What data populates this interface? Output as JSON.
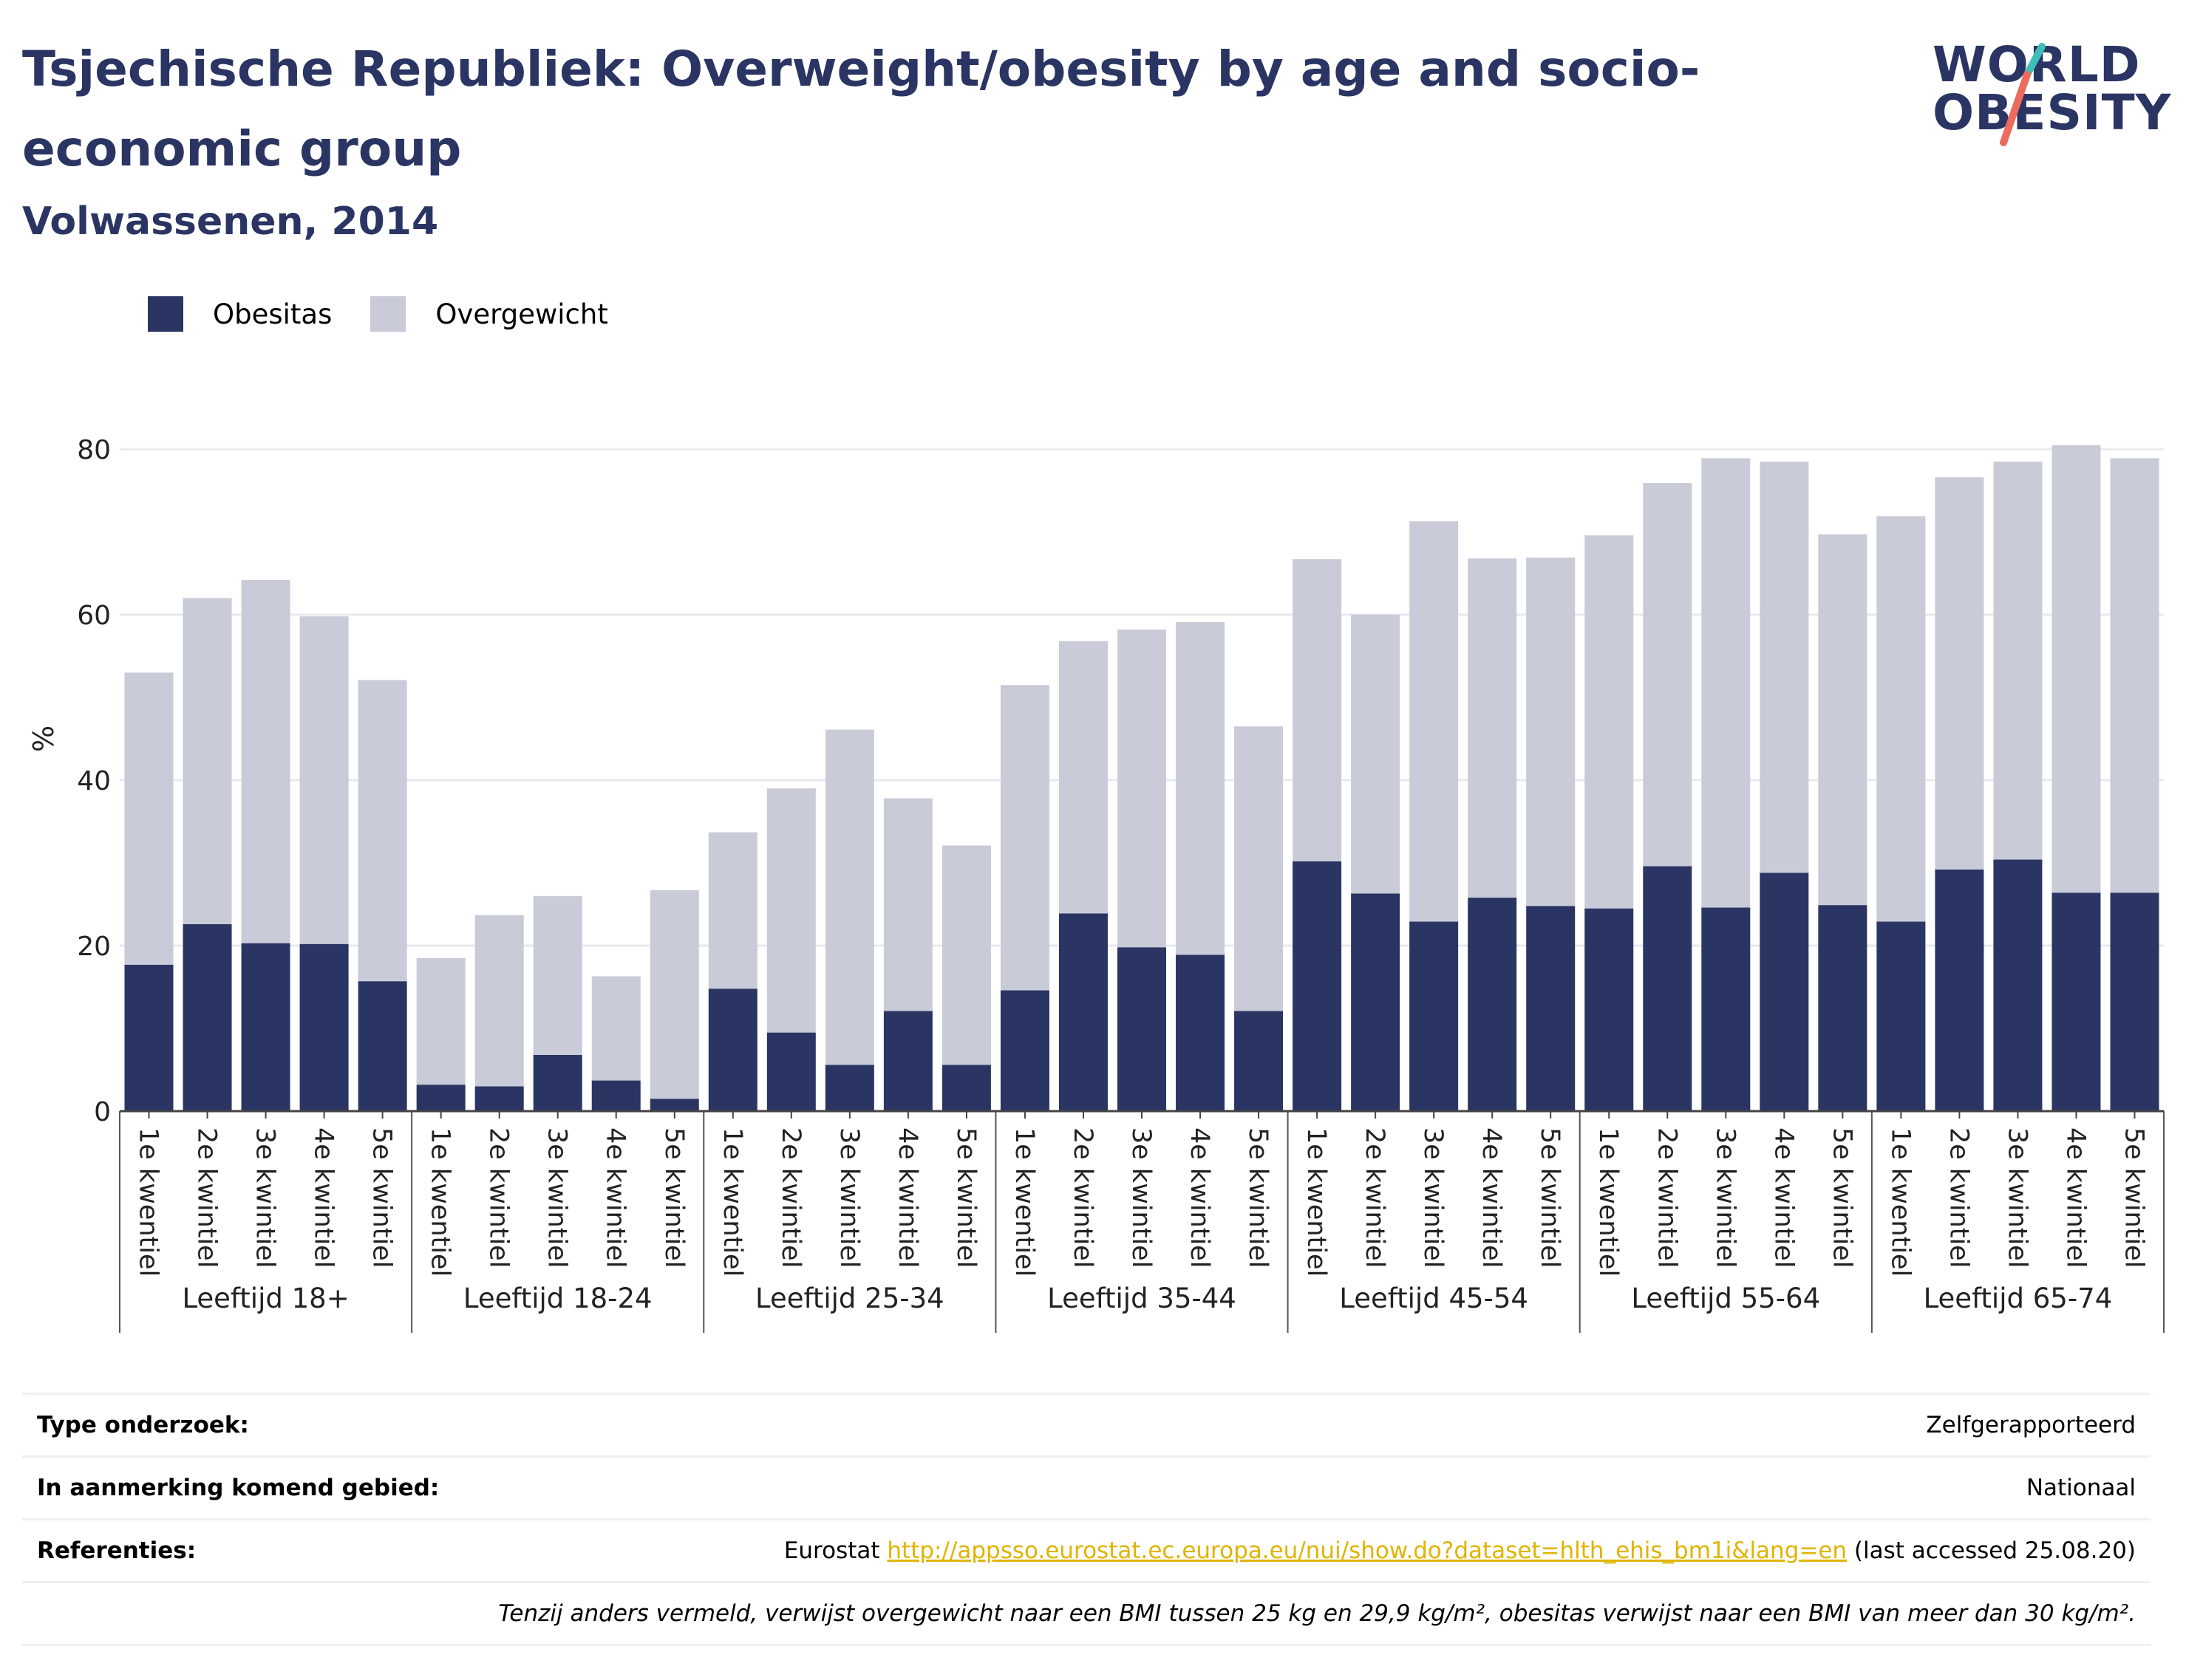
{
  "header": {
    "title": "Tsjechische Republiek: Overweight/obesity by age and socio-economic group",
    "subtitle": "Volwassenen, 2014"
  },
  "logo": {
    "line1": "WORLD",
    "line2": "OBESITY",
    "colors": {
      "navy": "#2a3563",
      "teal": "#3fbfb8",
      "coral": "#ec6b5c"
    }
  },
  "legend": {
    "items": [
      {
        "label": "Obesitas",
        "color": "#2a3563"
      },
      {
        "label": "Overgewicht",
        "color": "#c9cbd8"
      }
    ]
  },
  "chart_data": {
    "type": "bar",
    "stacked": true,
    "ylabel": "%",
    "ylim": [
      0,
      90
    ],
    "yticks": [
      0,
      20,
      40,
      60,
      80
    ],
    "grid": true,
    "legend_position": "top-left",
    "groups": [
      "Leeftijd 18+",
      "Leeftijd 18-24",
      "Leeftijd 25-34",
      "Leeftijd 35-44",
      "Leeftijd 45-54",
      "Leeftijd 55-64",
      "Leeftijd 65-74"
    ],
    "categories": [
      "1e kwentiel",
      "2e kwintiel",
      "3e kwintiel",
      "4e kwintiel",
      "5e kwintiel"
    ],
    "series": [
      {
        "name": "Obesitas",
        "color": "#2a3563",
        "values": [
          [
            17.7,
            22.6,
            20.3,
            20.2,
            15.7
          ],
          [
            3.2,
            3.0,
            6.8,
            3.7,
            1.5
          ],
          [
            14.8,
            9.5,
            5.6,
            12.1,
            5.6
          ],
          [
            14.6,
            23.9,
            19.8,
            18.9,
            12.1
          ],
          [
            30.2,
            26.3,
            22.9,
            25.8,
            24.8
          ],
          [
            24.5,
            29.6,
            24.6,
            28.8,
            24.9
          ],
          [
            22.9,
            29.2,
            30.4,
            26.4,
            26.4
          ]
        ]
      },
      {
        "name": "Overgewicht",
        "color": "#c9cbd8",
        "values": [
          [
            35.3,
            39.4,
            43.9,
            39.6,
            36.4
          ],
          [
            15.3,
            20.7,
            19.2,
            12.6,
            25.2
          ],
          [
            18.9,
            29.5,
            40.5,
            25.7,
            26.5
          ],
          [
            36.9,
            32.9,
            38.4,
            40.2,
            34.4
          ],
          [
            36.5,
            33.7,
            48.4,
            41.0,
            42.1
          ],
          [
            45.1,
            46.3,
            54.3,
            49.7,
            44.8
          ],
          [
            49.0,
            47.4,
            48.1,
            54.1,
            52.5
          ]
        ]
      }
    ]
  },
  "info": {
    "survey_type_label": "Type onderzoek:",
    "survey_type_value": "Zelfgerapporteerd",
    "area_label": "In aanmerking komend gebied:",
    "area_value": "Nationaal",
    "references_label": "Referenties:",
    "references_prefix": "Eurostat ",
    "references_link": "http://appsso.eurostat.ec.europa.eu/nui/show.do?dataset=hlth_ehis_bm1i&lang=en",
    "references_suffix": " (last accessed 25.08.20)",
    "note": "Tenzij anders vermeld, verwijst overgewicht naar een BMI tussen 25 kg en 29,9 kg/m², obesitas verwijst naar een BMI van meer dan 30 kg/m²."
  }
}
